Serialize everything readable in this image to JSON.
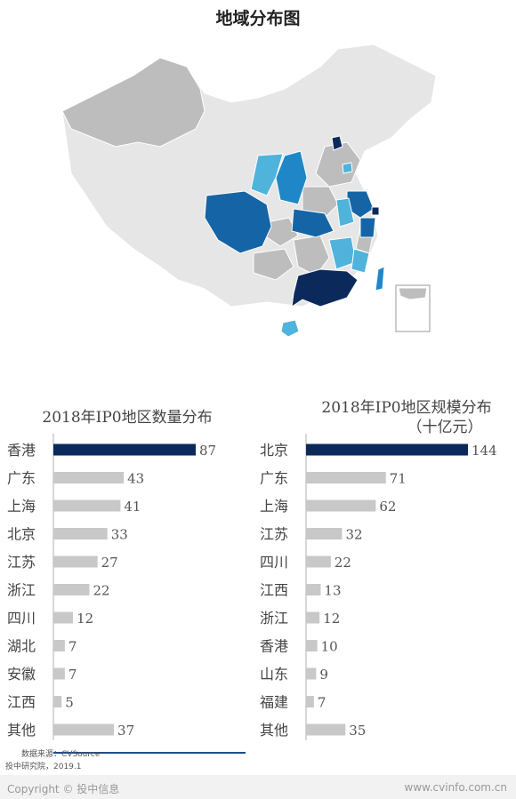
{
  "page": {
    "title": "地域分布图"
  },
  "map": {
    "colors": {
      "darkest": "#0b2a5b",
      "dark": "#1565a6",
      "mid": "#1f87c7",
      "light": "#4fb3dc",
      "gray": "#bdbdbd",
      "lightgray": "#e6e6e6",
      "outline": "#ffffff"
    }
  },
  "chart_data": [
    {
      "type": "bar",
      "title": "2018年IP0地区数量分布",
      "categories": [
        "香港",
        "广东",
        "上海",
        "北京",
        "江苏",
        "浙江",
        "四川",
        "湖北",
        "安徽",
        "江西",
        "其他"
      ],
      "values": [
        87,
        43,
        41,
        33,
        27,
        22,
        12,
        7,
        7,
        5,
        37
      ],
      "value_labels": [
        "87",
        "43",
        "41",
        "33",
        "27",
        "22",
        "12",
        "7",
        "7",
        "5",
        "37"
      ],
      "xlim": [
        0,
        87
      ],
      "highlight_color": "#0b2a5b",
      "bar_color": "#c8c8c8"
    },
    {
      "type": "bar",
      "title": "2018年IP0地区规模分布",
      "subtitle": "（十亿元）",
      "categories": [
        "北京",
        "广东",
        "上海",
        "江苏",
        "四川",
        "江西",
        "浙江",
        "香港",
        "山东",
        "福建",
        "其他"
      ],
      "values": [
        144,
        71,
        62,
        32,
        22,
        13,
        12,
        10,
        9,
        7,
        35
      ],
      "value_labels": [
        "144",
        "71",
        "62",
        "32",
        "22",
        "13",
        "12",
        "10",
        "9",
        "7",
        "35"
      ],
      "xlim": [
        0,
        144
      ],
      "highlight_color": "#0b2a5b",
      "bar_color": "#c8c8c8"
    }
  ],
  "footer": {
    "source": "数据来源：CVSource",
    "publisher": "投中研究院，2019.1",
    "copyright": "Copyright © 投中信息",
    "website": "www.cvinfo.com.cn"
  }
}
